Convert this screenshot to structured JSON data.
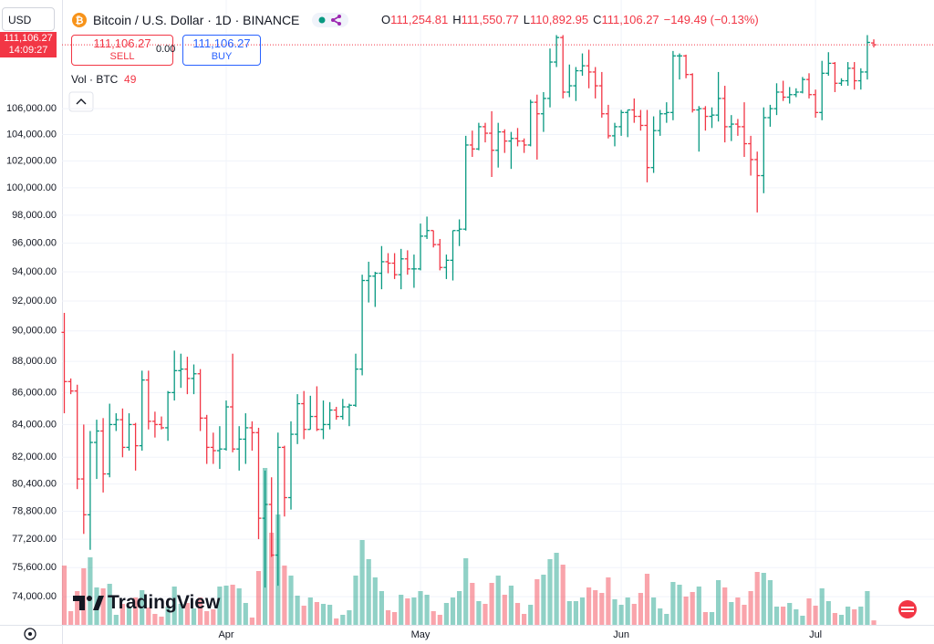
{
  "chart_data": {
    "type": "ohlc",
    "currency": "USD",
    "title": "Bitcoin / U.S. Dollar · 1D · BINANCE",
    "legend": [
      {
        "key": "O",
        "label": "111,254.81"
      },
      {
        "key": "H",
        "label": "111,550.77"
      },
      {
        "key": "L",
        "label": "110,892.95"
      },
      {
        "key": "C",
        "label": "111,106.27"
      }
    ],
    "change_label": "−149.49 (−0.13%)",
    "trade": {
      "sell_price": "111,106.27",
      "sell": "SELL",
      "spread": "0.00",
      "buy_price": "111,106.27",
      "buy": "BUY"
    },
    "volume_title": "Vol · BTC",
    "volume_value_label": "49",
    "last_price_label": "111,106.27",
    "countdown": "14:09:27",
    "brand": "TradingView",
    "log": true,
    "grid": true,
    "up_color": "#089981",
    "down_color": "#f23645",
    "ylim": [
      72480,
      114830
    ],
    "yticks": [
      {
        "value": 74000,
        "label": "74,000.00"
      },
      {
        "value": 75600,
        "label": "75,600.00"
      },
      {
        "value": 77200,
        "label": "77,200.00"
      },
      {
        "value": 78800,
        "label": "78,800.00"
      },
      {
        "value": 80400,
        "label": "80,400.00"
      },
      {
        "value": 82000,
        "label": "82,000.00"
      },
      {
        "value": 84000,
        "label": "84,000.00"
      },
      {
        "value": 86000,
        "label": "86,000.00"
      },
      {
        "value": 88000,
        "label": "88,000.00"
      },
      {
        "value": 90000,
        "label": "90,000.00"
      },
      {
        "value": 92000,
        "label": "92,000.00"
      },
      {
        "value": 94000,
        "label": "94,000.00"
      },
      {
        "value": 96000,
        "label": "96,000.00"
      },
      {
        "value": 98000,
        "label": "98,000.00"
      },
      {
        "value": 100000,
        "label": "100,000.00"
      },
      {
        "value": 102000,
        "label": "102,000.00"
      },
      {
        "value": 104000,
        "label": "104,000.00"
      },
      {
        "value": 106000,
        "label": "106,000.00"
      }
    ],
    "categories": [
      null,
      null,
      null,
      null,
      null,
      null,
      null,
      null,
      null,
      null,
      null,
      null,
      null,
      null,
      null,
      null,
      null,
      null,
      null,
      null,
      null,
      null,
      null,
      null,
      null,
      "Apr",
      null,
      null,
      null,
      null,
      null,
      null,
      null,
      null,
      null,
      null,
      null,
      null,
      null,
      null,
      null,
      null,
      null,
      null,
      null,
      null,
      null,
      null,
      null,
      null,
      null,
      null,
      null,
      null,
      null,
      "May",
      null,
      null,
      null,
      null,
      null,
      null,
      null,
      null,
      null,
      null,
      null,
      null,
      null,
      null,
      null,
      null,
      null,
      null,
      null,
      null,
      null,
      null,
      null,
      null,
      null,
      null,
      null,
      null,
      null,
      null,
      "Jun",
      null,
      null,
      null,
      null,
      null,
      null,
      null,
      null,
      null,
      null,
      null,
      null,
      null,
      null,
      null,
      null,
      null,
      null,
      null,
      null,
      null,
      null,
      null,
      null,
      null,
      null,
      null,
      null,
      null,
      "Jul",
      null,
      null,
      null,
      null,
      null,
      null,
      null,
      null,
      null
    ],
    "open": [
      89900,
      86700,
      86100,
      80700,
      78600,
      82900,
      83600,
      81000,
      84000,
      84300,
      82600,
      84000,
      82700,
      86800,
      84200,
      84000,
      83800,
      86000,
      87400,
      87500,
      86900,
      87200,
      84400,
      82600,
      82400,
      82500,
      85100,
      82500,
      83100,
      83800,
      83500,
      78400,
      79200,
      76300,
      82600,
      79600,
      83400,
      85300,
      83700,
      84500,
      83700,
      84000,
      84900,
      84500,
      85100,
      85200,
      87500,
      93400,
      93700,
      93900,
      94700,
      94600,
      93800,
      94900,
      94200,
      94200,
      96500,
      96900,
      95900,
      94300,
      94800,
      96900,
      97000,
      103200,
      102900,
      104600,
      104100,
      102800,
      104200,
      103500,
      103700,
      103500,
      103200,
      106500,
      105600,
      106800,
      109700,
      111700,
      107300,
      107800,
      109000,
      109400,
      108900,
      107800,
      105600,
      103900,
      104600,
      105700,
      105900,
      105400,
      104700,
      101500,
      104300,
      105600,
      105700,
      110200,
      110200,
      108700,
      105900,
      106000,
      105400,
      105500,
      106800,
      104600,
      104800,
      104600,
      103300,
      102100,
      100900,
      105300,
      106000,
      107300,
      106900,
      107100,
      107300,
      108300,
      107100,
      105700,
      108800,
      109600,
      108000,
      108200,
      109200,
      108200,
      108900,
      111254.81
    ],
    "high": [
      91200,
      86900,
      86500,
      84000,
      83600,
      84300,
      84400,
      85300,
      84700,
      85000,
      84700,
      84100,
      87400,
      87400,
      84800,
      84500,
      86100,
      88700,
      88500,
      88300,
      87800,
      87500,
      84600,
      83500,
      83900,
      85500,
      88500,
      83900,
      84700,
      84200,
      83800,
      81200,
      80800,
      83500,
      82700,
      84200,
      85900,
      86100,
      85800,
      86400,
      85500,
      85400,
      85100,
      85600,
      85300,
      88500,
      93800,
      94700,
      94000,
      95800,
      95300,
      95300,
      95600,
      95500,
      95200,
      97400,
      97900,
      96900,
      96300,
      95200,
      96900,
      97700,
      103900,
      104300,
      104900,
      104900,
      105800,
      104900,
      104400,
      104200,
      104500,
      103700,
      106700,
      107100,
      107300,
      110800,
      111900,
      111900,
      109500,
      109300,
      110400,
      110700,
      109300,
      108900,
      106300,
      104900,
      105900,
      105900,
      106800,
      105900,
      105900,
      105400,
      105900,
      106500,
      110600,
      110400,
      110300,
      108800,
      106200,
      106200,
      106100,
      108900,
      107800,
      105500,
      105200,
      106500,
      103900,
      102700,
      106100,
      106300,
      108000,
      108200,
      107700,
      107600,
      108500,
      108800,
      107500,
      109800,
      110500,
      109700,
      108400,
      109700,
      109700,
      109200,
      111900,
      111550.77
    ],
    "low": [
      84700,
      85900,
      80100,
      77500,
      76600,
      80700,
      79900,
      80800,
      83600,
      82000,
      82400,
      81200,
      82400,
      83700,
      83200,
      83700,
      83000,
      85500,
      86300,
      85900,
      85900,
      83600,
      81600,
      81600,
      81300,
      82400,
      82300,
      81200,
      81600,
      82400,
      77200,
      74500,
      76200,
      74600,
      78500,
      78900,
      82800,
      83100,
      83700,
      83600,
      83100,
      83700,
      84300,
      84300,
      83900,
      85100,
      87100,
      91900,
      91600,
      92800,
      93900,
      93500,
      92800,
      93800,
      92900,
      94100,
      96300,
      95700,
      94100,
      93500,
      93400,
      95800,
      96900,
      102300,
      102800,
      103400,
      100800,
      101500,
      102600,
      101400,
      103100,
      102600,
      103100,
      102100,
      104200,
      106100,
      109300,
      106800,
      106900,
      106600,
      108600,
      107600,
      106800,
      105300,
      103700,
      103100,
      103900,
      103800,
      104900,
      104300,
      100400,
      101100,
      103900,
      104900,
      105100,
      108300,
      108400,
      105700,
      102700,
      104300,
      104500,
      105000,
      103400,
      103500,
      103900,
      102300,
      100900,
      98200,
      99600,
      104600,
      105500,
      106600,
      106400,
      106900,
      107200,
      106800,
      105300,
      105100,
      108600,
      107300,
      107800,
      107800,
      107500,
      107500,
      108300,
      110892.95
    ],
    "close": [
      86700,
      86100,
      80700,
      78600,
      82900,
      83600,
      81000,
      84000,
      84300,
      82600,
      84000,
      82700,
      86800,
      84200,
      84000,
      83800,
      86000,
      87400,
      87500,
      86900,
      87200,
      84400,
      82600,
      82400,
      82500,
      85100,
      82500,
      83100,
      83800,
      83500,
      78400,
      79200,
      76300,
      82600,
      79600,
      83400,
      85300,
      83700,
      84500,
      83700,
      84000,
      84900,
      84500,
      85100,
      85200,
      87500,
      93400,
      93700,
      93900,
      94700,
      94600,
      93800,
      94900,
      94200,
      94200,
      96500,
      96900,
      95900,
      94300,
      94800,
      96900,
      97000,
      103200,
      102900,
      104600,
      104100,
      102800,
      104200,
      103500,
      103700,
      103500,
      103200,
      106500,
      105600,
      106800,
      109700,
      111700,
      107300,
      107800,
      109000,
      109400,
      108900,
      107800,
      105600,
      103900,
      104600,
      105700,
      105900,
      105400,
      104700,
      101500,
      104300,
      105600,
      105700,
      110200,
      110200,
      108700,
      105900,
      106000,
      105400,
      105500,
      106800,
      104600,
      104800,
      104600,
      103300,
      102100,
      100900,
      105300,
      106000,
      107300,
      106900,
      107100,
      107300,
      108300,
      107100,
      105700,
      108800,
      109600,
      108000,
      108200,
      109200,
      108200,
      108900,
      111300,
      111106.27
    ],
    "volume": [
      650,
      150,
      370,
      620,
      740,
      410,
      400,
      450,
      110,
      230,
      200,
      300,
      380,
      190,
      120,
      90,
      200,
      420,
      230,
      240,
      180,
      300,
      150,
      170,
      420,
      430,
      440,
      400,
      240,
      80,
      590,
      1720,
      1010,
      1210,
      650,
      540,
      320,
      210,
      300,
      250,
      230,
      220,
      70,
      110,
      160,
      540,
      930,
      720,
      520,
      370,
      160,
      140,
      330,
      290,
      300,
      370,
      330,
      150,
      110,
      240,
      300,
      370,
      730,
      460,
      260,
      230,
      460,
      540,
      330,
      430,
      240,
      120,
      220,
      500,
      550,
      720,
      790,
      660,
      260,
      260,
      300,
      410,
      380,
      350,
      520,
      280,
      220,
      300,
      230,
      350,
      560,
      300,
      180,
      120,
      470,
      440,
      310,
      360,
      420,
      140,
      140,
      490,
      410,
      250,
      300,
      220,
      370,
      580,
      570,
      490,
      200,
      200,
      240,
      170,
      100,
      290,
      210,
      400,
      260,
      130,
      110,
      200,
      170,
      200,
      370,
      49
    ]
  }
}
